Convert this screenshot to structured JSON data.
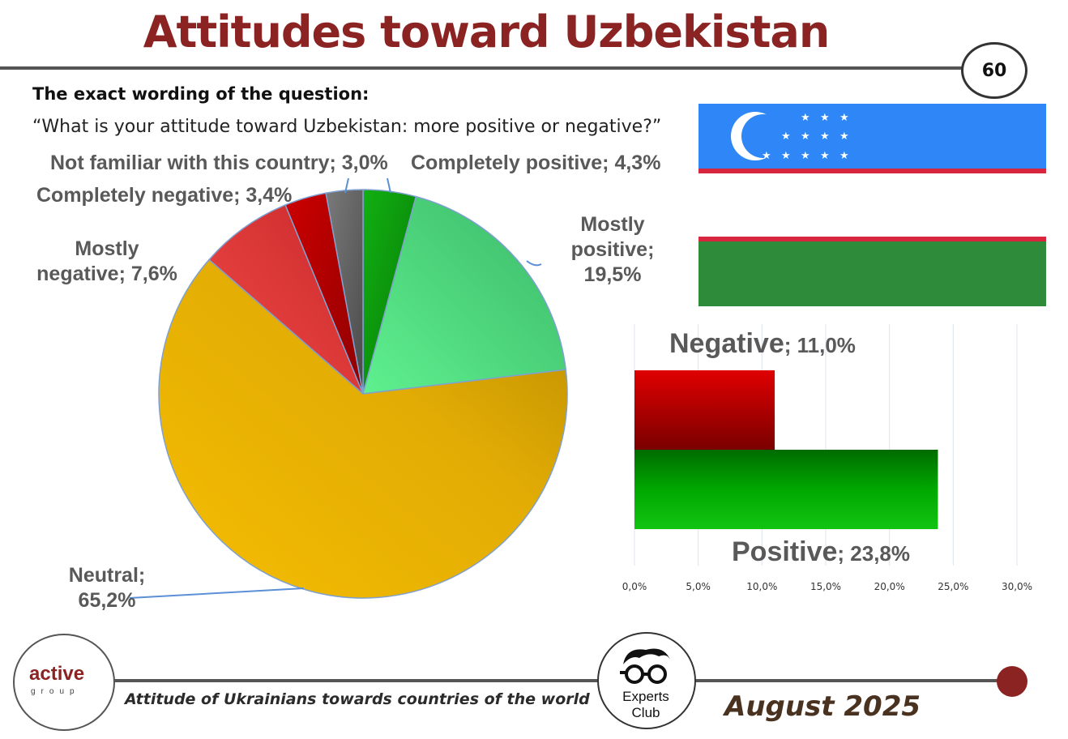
{
  "header": {
    "title": "Attitudes toward Uzbekistan",
    "page_number": "60"
  },
  "question": {
    "heading": "The exact wording of the question:",
    "text": "“What is your attitude toward Uzbekistan: more positive or negative?”"
  },
  "colors": {
    "title": "#8b2323",
    "completely_positive": "#0a9a0a",
    "mostly_positive": "#4cd07a",
    "neutral": "#e8b100",
    "mostly_negative": "#e03a3a",
    "completely_negative": "#b00000",
    "not_familiar": "#666666",
    "flag_blue": "#2f86f6",
    "flag_red": "#d7263d",
    "flag_green": "#2e8b3a"
  },
  "chart_data": [
    {
      "type": "pie",
      "slices": [
        {
          "label": "Completely positive",
          "value": 4.3,
          "text": "Completely positive; 4,3%"
        },
        {
          "label": "Mostly positive",
          "value": 19.5,
          "text": [
            "Mostly",
            "positive;",
            "19,5%"
          ]
        },
        {
          "label": "Neutral",
          "value": 65.2,
          "text": [
            "Neutral;",
            "65,2%"
          ]
        },
        {
          "label": "Mostly negative",
          "value": 7.6,
          "text": [
            "Mostly",
            "negative; 7,6%"
          ]
        },
        {
          "label": "Completely negative",
          "value": 3.4,
          "text": "Completely negative; 3,4%"
        },
        {
          "label": "Not familiar with this country",
          "value": 3.0,
          "text": "Not familiar with this country; 3,0%"
        }
      ]
    },
    {
      "type": "bar",
      "orientation": "horizontal",
      "categories": [
        "Negative",
        "Positive"
      ],
      "values": [
        11.0,
        23.8
      ],
      "value_labels": [
        "; 11,0%",
        "; 23,8%"
      ],
      "xlim": [
        0,
        30
      ],
      "x_ticks": [
        "0,0%",
        "5,0%",
        "10,0%",
        "15,0%",
        "20,0%",
        "25,0%",
        "30,0%"
      ],
      "grid": true
    }
  ],
  "footer": {
    "subtitle": "Attitude of Ukrainians towards countries of the world",
    "date": "August 2025",
    "logo_word": "active",
    "logo_sub": "group",
    "experts_line1": "Experts",
    "experts_line2": "Club"
  }
}
